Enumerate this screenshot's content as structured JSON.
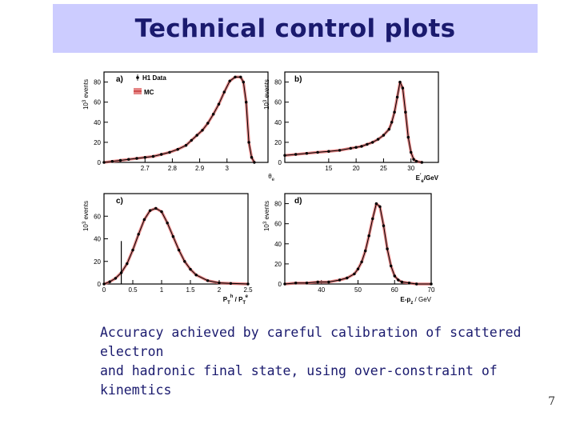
{
  "slide": {
    "title": "Technical control plots",
    "caption_line1": "Accuracy achieved by careful calibration of scattered electron",
    "caption_line2": "and hadronic final state, using over-constraint of kinemtics",
    "page_number": "7"
  },
  "colors": {
    "title_bg": "#ccccff",
    "title_text": "#1a1a6e",
    "mc_band": "#e07070",
    "data_points": "#000000"
  },
  "chart_data": [
    {
      "type": "line",
      "panel_label": "a)",
      "ylabel": "10³ events",
      "xlabel": "θe",
      "legend": [
        {
          "name": "H1 Data",
          "marker": "dot"
        },
        {
          "name": "MC",
          "marker": "box"
        }
      ],
      "legend_position": "top-left",
      "xlim": [
        2.55,
        3.15
      ],
      "ylim": [
        0,
        90
      ],
      "xticks": [
        2.7,
        2.8,
        2.9,
        3
      ],
      "yticks": [
        0,
        20,
        40,
        60,
        80
      ],
      "series": [
        {
          "x": [
            2.55,
            2.58,
            2.61,
            2.64,
            2.67,
            2.7,
            2.73,
            2.76,
            2.79,
            2.82,
            2.85,
            2.87,
            2.89,
            2.91,
            2.93,
            2.95,
            2.97,
            2.99,
            3.01,
            3.03,
            3.05,
            3.06,
            3.07,
            3.08,
            3.09,
            3.1
          ],
          "y": [
            0,
            1,
            2,
            3,
            4,
            5,
            6,
            8,
            10,
            13,
            17,
            22,
            27,
            32,
            39,
            48,
            58,
            70,
            81,
            85,
            85,
            80,
            60,
            20,
            5,
            0
          ]
        }
      ]
    },
    {
      "type": "line",
      "panel_label": "b)",
      "ylabel": "10³ events",
      "xlabel": "Ee'/GeV",
      "xlim": [
        7,
        35
      ],
      "ylim": [
        0,
        90
      ],
      "xticks": [
        15,
        20,
        25,
        30
      ],
      "yticks": [
        0,
        20,
        40,
        60,
        80
      ],
      "series": [
        {
          "x": [
            7,
            9,
            11,
            13,
            15,
            17,
            19,
            20,
            21,
            22,
            23,
            24,
            25,
            26,
            26.5,
            27,
            27.5,
            28,
            28.5,
            29,
            29.5,
            30,
            30.5,
            31,
            32
          ],
          "y": [
            7,
            8,
            9,
            10,
            11,
            12,
            14,
            15,
            16,
            18,
            20,
            23,
            27,
            33,
            40,
            50,
            65,
            80,
            74,
            50,
            25,
            10,
            3,
            1,
            0
          ]
        }
      ]
    },
    {
      "type": "line",
      "panel_label": "c)",
      "ylabel": "10³ events",
      "xlabel": "PT^h / PT^e",
      "xlim": [
        0,
        2.5
      ],
      "ylim": [
        0,
        80
      ],
      "xticks": [
        0,
        0.5,
        1,
        1.5,
        2,
        2.5
      ],
      "yticks": [
        0,
        20,
        40,
        60
      ],
      "series": [
        {
          "x": [
            0.0,
            0.1,
            0.2,
            0.3,
            0.4,
            0.5,
            0.6,
            0.7,
            0.8,
            0.9,
            1.0,
            1.1,
            1.2,
            1.3,
            1.4,
            1.5,
            1.6,
            1.8,
            2.0,
            2.2,
            2.5
          ],
          "y": [
            0,
            2,
            5,
            10,
            18,
            30,
            44,
            57,
            65,
            67,
            64,
            54,
            42,
            30,
            20,
            13,
            8,
            3,
            1,
            0.5,
            0
          ]
        }
      ]
    },
    {
      "type": "line",
      "panel_label": "d)",
      "ylabel": "10³ events",
      "xlabel": "E-pz / GeV",
      "xlim": [
        30,
        70
      ],
      "ylim": [
        0,
        90
      ],
      "xticks": [
        40,
        50,
        60,
        70
      ],
      "yticks": [
        0,
        20,
        40,
        60,
        80
      ],
      "series": [
        {
          "x": [
            30,
            33,
            36,
            39,
            42,
            45,
            47,
            49,
            50,
            51,
            52,
            53,
            54,
            55,
            56,
            57,
            58,
            59,
            60,
            61,
            62,
            64,
            66,
            70
          ],
          "y": [
            0,
            1,
            1,
            2,
            2,
            4,
            6,
            10,
            15,
            22,
            33,
            48,
            65,
            80,
            77,
            58,
            35,
            18,
            8,
            4,
            2,
            1,
            0,
            0
          ]
        }
      ]
    }
  ]
}
